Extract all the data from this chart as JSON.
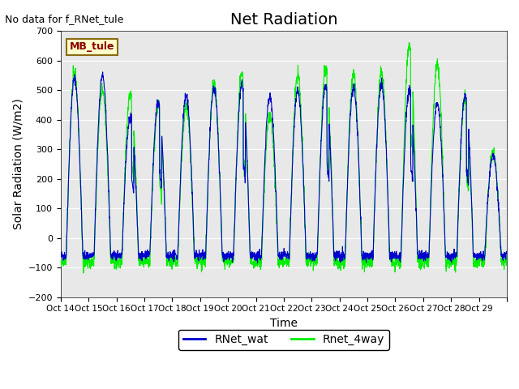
{
  "title": "Net Radiation",
  "ylabel": "Solar Radiation (W/m2)",
  "xlabel": "Time",
  "no_data_text": "No data for f_RNet_tule",
  "mb_tule_label": "MB_tule",
  "ylim": [
    -200,
    700
  ],
  "yticks": [
    -200,
    -100,
    0,
    100,
    200,
    300,
    400,
    500,
    600,
    700
  ],
  "xtick_labels": [
    "Oct 14",
    "Oct 15",
    "Oct 16",
    "Oct 17",
    "Oct 18",
    "Oct 19",
    "Oct 20",
    "Oct 21",
    "Oct 22",
    "Oct 23",
    "Oct 24",
    "Oct 25",
    "Oct 26",
    "Oct 27",
    "Oct 28",
    "Oct 29"
  ],
  "color_wat": "#0000cd",
  "color_4way": "#00ee00",
  "legend_wat": "RNet_wat",
  "legend_4way": "Rnet_4way",
  "bg_color": "#e8e8e8",
  "title_fontsize": 14,
  "label_fontsize": 10,
  "tick_fontsize": 9
}
